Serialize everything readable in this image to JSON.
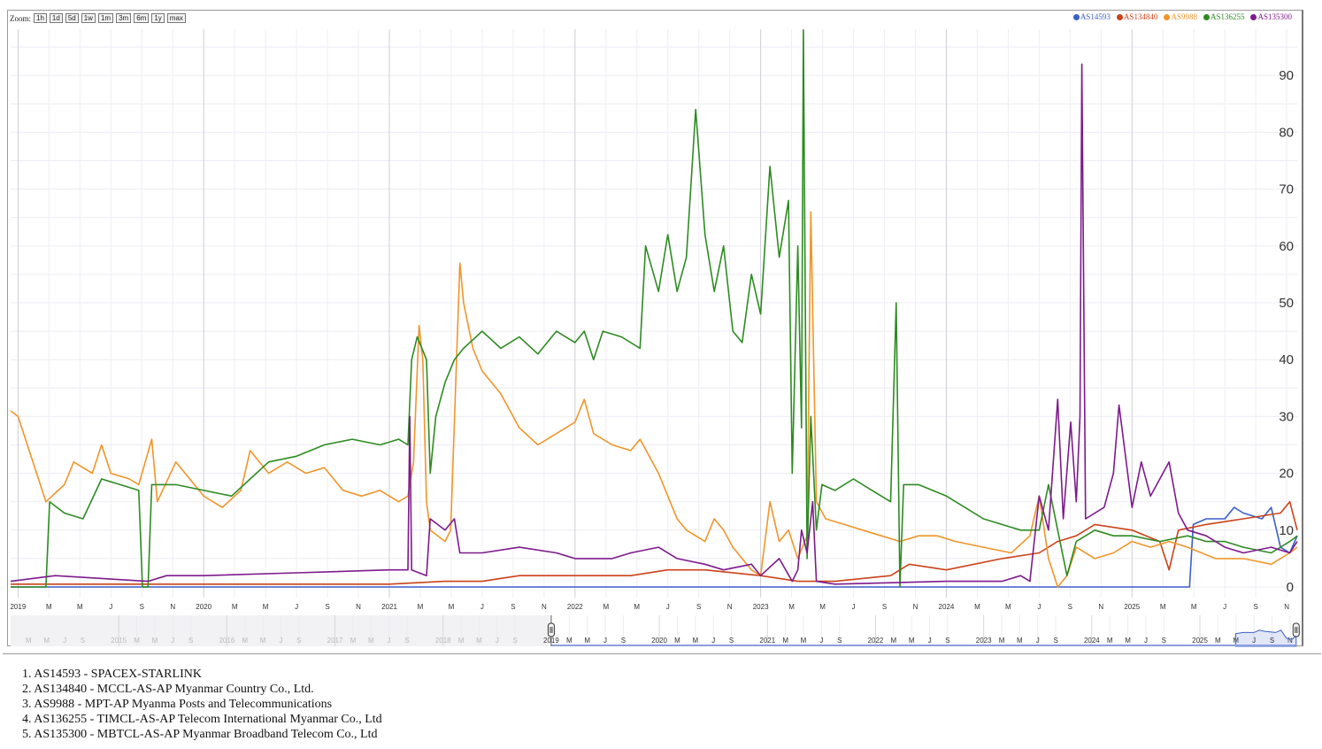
{
  "zoom": {
    "label": "Zoom:",
    "buttons": [
      "1h",
      "1d",
      "5d",
      "1w",
      "1m",
      "3m",
      "6m",
      "1y",
      "max"
    ]
  },
  "chart_data": {
    "type": "line",
    "title": "",
    "xlabel": "",
    "ylabel": "",
    "xlim": [
      2018.96,
      2025.89
    ],
    "ylim": [
      0,
      100
    ],
    "yticks": [
      0,
      10,
      20,
      30,
      40,
      50,
      60,
      70,
      80,
      90
    ],
    "grid": true,
    "legend_position": "top-right",
    "x_tick_labels_months": [
      "M",
      "M",
      "J",
      "S",
      "N"
    ],
    "x_tick_years": [
      "2019",
      "2020",
      "2021",
      "2022",
      "2023",
      "2024",
      "2025"
    ],
    "navigator": {
      "range": [
        2014,
        2025.9
      ],
      "selected": [
        2019,
        2025.89
      ],
      "years": [
        "2015",
        "2016",
        "2017",
        "2018",
        "2019",
        "2020",
        "2021",
        "2022",
        "2023",
        "2024",
        "2025"
      ],
      "month_labels": [
        "M",
        "M",
        "J",
        "S"
      ],
      "end_labels": [
        "M",
        "M",
        "J",
        "S",
        "N"
      ]
    },
    "series": [
      {
        "name": "AS14593",
        "color": "#3b5fc9",
        "points": [
          [
            2018.96,
            0
          ],
          [
            2025.31,
            0
          ],
          [
            2025.33,
            11
          ],
          [
            2025.4,
            12
          ],
          [
            2025.5,
            12
          ],
          [
            2025.55,
            14
          ],
          [
            2025.6,
            13
          ],
          [
            2025.7,
            12
          ],
          [
            2025.75,
            14
          ],
          [
            2025.8,
            7
          ],
          [
            2025.85,
            6
          ],
          [
            2025.89,
            9
          ]
        ]
      },
      {
        "name": "AS134840",
        "color": "#cc4219",
        "points": [
          [
            2018.96,
            0.5
          ],
          [
            2021.0,
            0.5
          ],
          [
            2021.3,
            1
          ],
          [
            2021.5,
            1
          ],
          [
            2021.7,
            2
          ],
          [
            2022.0,
            2
          ],
          [
            2022.3,
            2
          ],
          [
            2022.5,
            3
          ],
          [
            2022.7,
            3
          ],
          [
            2023.0,
            2
          ],
          [
            2023.2,
            1
          ],
          [
            2023.4,
            1
          ],
          [
            2023.7,
            2
          ],
          [
            2023.8,
            4
          ],
          [
            2024.0,
            3
          ],
          [
            2024.3,
            5
          ],
          [
            2024.5,
            6
          ],
          [
            2024.6,
            8
          ],
          [
            2024.7,
            9
          ],
          [
            2024.8,
            11
          ],
          [
            2025.0,
            10
          ],
          [
            2025.15,
            8
          ],
          [
            2025.2,
            3
          ],
          [
            2025.25,
            10
          ],
          [
            2025.4,
            11
          ],
          [
            2025.6,
            12
          ],
          [
            2025.8,
            13
          ],
          [
            2025.85,
            15
          ],
          [
            2025.89,
            10
          ]
        ]
      },
      {
        "name": "AS9988",
        "color": "#f0952a",
        "points": [
          [
            2018.96,
            31
          ],
          [
            2019.0,
            30
          ],
          [
            2019.05,
            25
          ],
          [
            2019.1,
            20
          ],
          [
            2019.15,
            15
          ],
          [
            2019.25,
            18
          ],
          [
            2019.3,
            22
          ],
          [
            2019.4,
            20
          ],
          [
            2019.45,
            25
          ],
          [
            2019.5,
            20
          ],
          [
            2019.6,
            19
          ],
          [
            2019.65,
            18
          ],
          [
            2019.72,
            26
          ],
          [
            2019.75,
            15
          ],
          [
            2019.85,
            22
          ],
          [
            2019.95,
            18
          ],
          [
            2020.0,
            16
          ],
          [
            2020.1,
            14
          ],
          [
            2020.2,
            17
          ],
          [
            2020.25,
            24
          ],
          [
            2020.35,
            20
          ],
          [
            2020.45,
            22
          ],
          [
            2020.55,
            20
          ],
          [
            2020.65,
            21
          ],
          [
            2020.75,
            17
          ],
          [
            2020.85,
            16
          ],
          [
            2020.95,
            17
          ],
          [
            2021.05,
            15
          ],
          [
            2021.1,
            16
          ],
          [
            2021.13,
            22
          ],
          [
            2021.16,
            46
          ],
          [
            2021.18,
            40
          ],
          [
            2021.2,
            15
          ],
          [
            2021.22,
            10
          ],
          [
            2021.3,
            8
          ],
          [
            2021.33,
            10
          ],
          [
            2021.38,
            57
          ],
          [
            2021.4,
            50
          ],
          [
            2021.45,
            42
          ],
          [
            2021.5,
            38
          ],
          [
            2021.6,
            34
          ],
          [
            2021.7,
            28
          ],
          [
            2021.8,
            25
          ],
          [
            2021.9,
            27
          ],
          [
            2022.0,
            29
          ],
          [
            2022.05,
            33
          ],
          [
            2022.1,
            27
          ],
          [
            2022.2,
            25
          ],
          [
            2022.3,
            24
          ],
          [
            2022.35,
            26
          ],
          [
            2022.45,
            20
          ],
          [
            2022.55,
            12
          ],
          [
            2022.6,
            10
          ],
          [
            2022.7,
            8
          ],
          [
            2022.75,
            12
          ],
          [
            2022.8,
            10
          ],
          [
            2022.85,
            7
          ],
          [
            2022.9,
            5
          ],
          [
            2022.95,
            3
          ],
          [
            2023.0,
            2
          ],
          [
            2023.05,
            15
          ],
          [
            2023.1,
            8
          ],
          [
            2023.15,
            10
          ],
          [
            2023.2,
            5
          ],
          [
            2023.25,
            9
          ],
          [
            2023.27,
            66
          ],
          [
            2023.3,
            15
          ],
          [
            2023.35,
            12
          ],
          [
            2023.45,
            11
          ],
          [
            2023.55,
            10
          ],
          [
            2023.65,
            9
          ],
          [
            2023.75,
            8
          ],
          [
            2023.85,
            9
          ],
          [
            2023.95,
            9
          ],
          [
            2024.05,
            8
          ],
          [
            2024.2,
            7
          ],
          [
            2024.35,
            6
          ],
          [
            2024.45,
            9
          ],
          [
            2024.5,
            16
          ],
          [
            2024.55,
            5
          ],
          [
            2024.6,
            0
          ],
          [
            2024.65,
            2
          ],
          [
            2024.7,
            7
          ],
          [
            2024.8,
            5
          ],
          [
            2024.9,
            6
          ],
          [
            2025.0,
            8
          ],
          [
            2025.1,
            7
          ],
          [
            2025.2,
            8
          ],
          [
            2025.3,
            7
          ],
          [
            2025.45,
            5
          ],
          [
            2025.6,
            5
          ],
          [
            2025.75,
            4
          ],
          [
            2025.85,
            6
          ],
          [
            2025.89,
            7
          ]
        ]
      },
      {
        "name": "AS136255",
        "color": "#2e8b22",
        "points": [
          [
            2018.96,
            0
          ],
          [
            2019.15,
            0
          ],
          [
            2019.17,
            15
          ],
          [
            2019.25,
            13
          ],
          [
            2019.35,
            12
          ],
          [
            2019.45,
            19
          ],
          [
            2019.55,
            18
          ],
          [
            2019.65,
            17
          ],
          [
            2019.67,
            0
          ],
          [
            2019.7,
            0
          ],
          [
            2019.72,
            18
          ],
          [
            2019.85,
            18
          ],
          [
            2020.0,
            17
          ],
          [
            2020.15,
            16
          ],
          [
            2020.25,
            19
          ],
          [
            2020.35,
            22
          ],
          [
            2020.5,
            23
          ],
          [
            2020.65,
            25
          ],
          [
            2020.8,
            26
          ],
          [
            2020.95,
            25
          ],
          [
            2021.05,
            26
          ],
          [
            2021.1,
            25
          ],
          [
            2021.12,
            40
          ],
          [
            2021.15,
            44
          ],
          [
            2021.2,
            40
          ],
          [
            2021.22,
            20
          ],
          [
            2021.25,
            30
          ],
          [
            2021.3,
            36
          ],
          [
            2021.35,
            40
          ],
          [
            2021.4,
            42
          ],
          [
            2021.5,
            45
          ],
          [
            2021.6,
            42
          ],
          [
            2021.7,
            44
          ],
          [
            2021.8,
            41
          ],
          [
            2021.9,
            45
          ],
          [
            2022.0,
            43
          ],
          [
            2022.05,
            45
          ],
          [
            2022.1,
            40
          ],
          [
            2022.15,
            45
          ],
          [
            2022.25,
            44
          ],
          [
            2022.35,
            42
          ],
          [
            2022.38,
            60
          ],
          [
            2022.45,
            52
          ],
          [
            2022.5,
            62
          ],
          [
            2022.55,
            52
          ],
          [
            2022.6,
            58
          ],
          [
            2022.65,
            84
          ],
          [
            2022.7,
            62
          ],
          [
            2022.75,
            52
          ],
          [
            2022.8,
            60
          ],
          [
            2022.85,
            45
          ],
          [
            2022.9,
            43
          ],
          [
            2022.95,
            55
          ],
          [
            2023.0,
            48
          ],
          [
            2023.05,
            74
          ],
          [
            2023.1,
            58
          ],
          [
            2023.15,
            68
          ],
          [
            2023.17,
            20
          ],
          [
            2023.2,
            60
          ],
          [
            2023.22,
            28
          ],
          [
            2023.23,
            98
          ],
          [
            2023.25,
            5
          ],
          [
            2023.27,
            30
          ],
          [
            2023.3,
            10
          ],
          [
            2023.33,
            18
          ],
          [
            2023.4,
            17
          ],
          [
            2023.5,
            19
          ],
          [
            2023.6,
            17
          ],
          [
            2023.7,
            15
          ],
          [
            2023.73,
            50
          ],
          [
            2023.75,
            0
          ],
          [
            2023.77,
            18
          ],
          [
            2023.85,
            18
          ],
          [
            2024.0,
            16
          ],
          [
            2024.1,
            14
          ],
          [
            2024.2,
            12
          ],
          [
            2024.3,
            11
          ],
          [
            2024.4,
            10
          ],
          [
            2024.5,
            10
          ],
          [
            2024.55,
            18
          ],
          [
            2024.6,
            10
          ],
          [
            2024.65,
            2
          ],
          [
            2024.7,
            8
          ],
          [
            2024.8,
            10
          ],
          [
            2024.9,
            9
          ],
          [
            2025.0,
            9
          ],
          [
            2025.15,
            8
          ],
          [
            2025.3,
            9
          ],
          [
            2025.4,
            8
          ],
          [
            2025.5,
            8
          ],
          [
            2025.6,
            7
          ],
          [
            2025.75,
            6
          ],
          [
            2025.85,
            8
          ],
          [
            2025.89,
            9
          ]
        ]
      },
      {
        "name": "AS135300",
        "color": "#7d1a8c",
        "points": [
          [
            2018.96,
            1
          ],
          [
            2019.2,
            2
          ],
          [
            2019.7,
            1
          ],
          [
            2019.8,
            2
          ],
          [
            2020.0,
            2
          ],
          [
            2020.5,
            2.5
          ],
          [
            2021.0,
            3
          ],
          [
            2021.1,
            3
          ],
          [
            2021.11,
            30
          ],
          [
            2021.12,
            3
          ],
          [
            2021.2,
            2
          ],
          [
            2021.22,
            12
          ],
          [
            2021.3,
            10
          ],
          [
            2021.35,
            12
          ],
          [
            2021.38,
            6
          ],
          [
            2021.5,
            6
          ],
          [
            2021.7,
            7
          ],
          [
            2021.9,
            6
          ],
          [
            2022.0,
            5
          ],
          [
            2022.2,
            5
          ],
          [
            2022.3,
            6
          ],
          [
            2022.45,
            7
          ],
          [
            2022.55,
            5
          ],
          [
            2022.7,
            4
          ],
          [
            2022.8,
            3
          ],
          [
            2022.95,
            4
          ],
          [
            2023.0,
            2
          ],
          [
            2023.1,
            5
          ],
          [
            2023.17,
            1
          ],
          [
            2023.2,
            3
          ],
          [
            2023.22,
            10
          ],
          [
            2023.25,
            6
          ],
          [
            2023.28,
            15
          ],
          [
            2023.3,
            1
          ],
          [
            2023.4,
            0.5
          ],
          [
            2024.0,
            1
          ],
          [
            2024.3,
            1
          ],
          [
            2024.4,
            2
          ],
          [
            2024.45,
            1
          ],
          [
            2024.5,
            16
          ],
          [
            2024.55,
            10
          ],
          [
            2024.6,
            33
          ],
          [
            2024.63,
            12
          ],
          [
            2024.67,
            29
          ],
          [
            2024.7,
            15
          ],
          [
            2024.72,
            30
          ],
          [
            2024.73,
            92
          ],
          [
            2024.75,
            12
          ],
          [
            2024.85,
            14
          ],
          [
            2024.9,
            20
          ],
          [
            2024.93,
            32
          ],
          [
            2025.0,
            14
          ],
          [
            2025.05,
            22
          ],
          [
            2025.1,
            16
          ],
          [
            2025.2,
            22
          ],
          [
            2025.25,
            13
          ],
          [
            2025.3,
            10
          ],
          [
            2025.4,
            9
          ],
          [
            2025.5,
            7
          ],
          [
            2025.6,
            6
          ],
          [
            2025.75,
            7
          ],
          [
            2025.85,
            6
          ],
          [
            2025.89,
            8
          ]
        ]
      }
    ]
  },
  "as_list": [
    "1. AS14593 - SPACEX-STARLINK",
    "2. AS134840 - MCCL-AS-AP Myanmar Country Co., Ltd.",
    "3. AS9988 - MPT-AP Myanma Posts and Telecommunications",
    "4. AS136255 - TIMCL-AS-AP Telecom International Myanmar Co., Ltd",
    "5. AS135300 - MBTCL-AS-AP Myanmar Broadband Telecom Co., Ltd"
  ]
}
